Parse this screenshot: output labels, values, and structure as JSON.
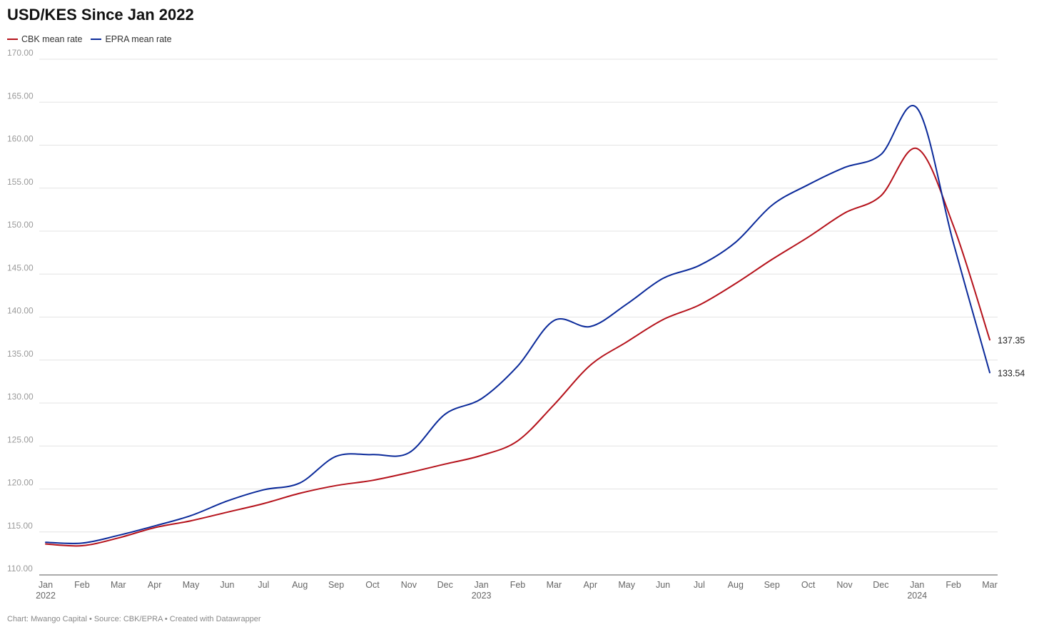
{
  "chart_data": {
    "type": "line",
    "title": "USD/KES Since Jan 2022",
    "xlabel": "",
    "ylabel": "",
    "ylim": [
      110,
      170
    ],
    "yticks": [
      "110.00",
      "115.00",
      "120.00",
      "125.00",
      "130.00",
      "135.00",
      "140.00",
      "145.00",
      "150.00",
      "155.00",
      "160.00",
      "165.00",
      "170.00"
    ],
    "x": [
      "2022-01",
      "2022-02",
      "2022-03",
      "2022-04",
      "2022-05",
      "2022-06",
      "2022-07",
      "2022-08",
      "2022-09",
      "2022-10",
      "2022-11",
      "2022-12",
      "2023-01",
      "2023-02",
      "2023-03",
      "2023-04",
      "2023-05",
      "2023-06",
      "2023-07",
      "2023-08",
      "2023-09",
      "2023-10",
      "2023-11",
      "2023-12",
      "2024-01",
      "2024-02",
      "2024-03"
    ],
    "xtick_labels": [
      "Jan",
      "Feb",
      "Mar",
      "Apr",
      "May",
      "Jun",
      "Jul",
      "Aug",
      "Sep",
      "Oct",
      "Nov",
      "Dec",
      "Jan",
      "Feb",
      "Mar",
      "Apr",
      "May",
      "Jun",
      "Jul",
      "Aug",
      "Sep",
      "Oct",
      "Nov",
      "Dec",
      "Jan",
      "Feb",
      "Mar"
    ],
    "xtick_years": {
      "0": "2022",
      "12": "2023",
      "24": "2024"
    },
    "legend_position": "top-left",
    "grid": true,
    "series": [
      {
        "name": "CBK mean rate",
        "color": "#b5121b",
        "values": [
          113.6,
          113.4,
          114.3,
          115.5,
          116.3,
          117.3,
          118.3,
          119.5,
          120.4,
          121.0,
          121.9,
          122.9,
          123.9,
          125.6,
          129.8,
          134.4,
          137.1,
          139.7,
          141.4,
          143.9,
          146.7,
          149.3,
          152.1,
          154.1,
          159.6,
          150.6,
          137.35
        ],
        "end_label": "137.35"
      },
      {
        "name": "EPRA mean rate",
        "color": "#0b2a9a",
        "values": [
          113.8,
          113.7,
          114.6,
          115.7,
          116.9,
          118.6,
          119.9,
          120.7,
          123.8,
          124.0,
          124.2,
          128.7,
          130.5,
          134.3,
          139.6,
          138.9,
          141.5,
          144.5,
          146.0,
          148.7,
          153.0,
          155.4,
          157.4,
          158.9,
          164.3,
          148.6,
          133.54
        ],
        "end_label": "133.54"
      }
    ]
  },
  "footer": "Chart: Mwango Capital • Source: CBK/EPRA • Created with Datawrapper"
}
